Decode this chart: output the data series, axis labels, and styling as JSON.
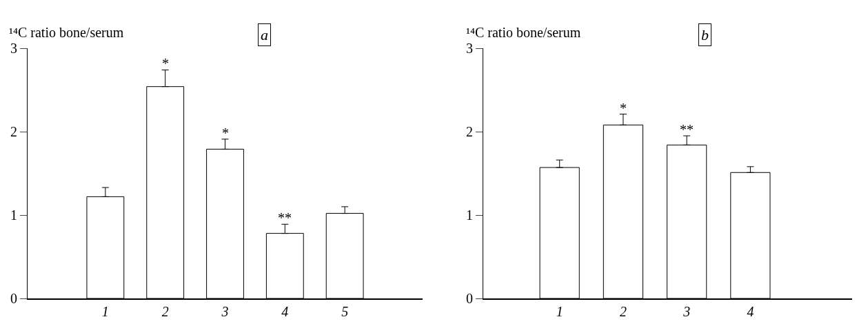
{
  "chart_data": [
    {
      "type": "bar",
      "title": "a",
      "ylabel": "¹⁴C ratio bone/serum",
      "categories": [
        "1",
        "2",
        "3",
        "4",
        "5"
      ],
      "values": [
        1.22,
        2.54,
        1.79,
        0.78,
        1.02
      ],
      "errors": [
        0.11,
        0.2,
        0.12,
        0.11,
        0.08
      ],
      "color": "#ffffff",
      "ylim": [
        0,
        3
      ],
      "yticks": [
        0,
        1,
        2,
        3
      ],
      "grid": false,
      "annotations": [
        {
          "text": "*",
          "x": "2",
          "y": 2.74
        },
        {
          "text": "*",
          "x": "3",
          "y": 1.91
        },
        {
          "text": "**",
          "x": "4",
          "y": 0.89
        }
      ]
    },
    {
      "type": "bar",
      "title": "b",
      "ylabel": "¹⁴C ratio bone/serum",
      "categories": [
        "1",
        "2",
        "3",
        "4"
      ],
      "values": [
        1.57,
        2.08,
        1.84,
        1.51
      ],
      "errors": [
        0.09,
        0.13,
        0.11,
        0.07
      ],
      "color": "#ffffff",
      "ylim": [
        0,
        3
      ],
      "yticks": [
        0,
        1,
        2,
        3
      ],
      "grid": false,
      "annotations": [
        {
          "text": "*",
          "x": "2",
          "y": 2.21
        },
        {
          "text": "**",
          "x": "3",
          "y": 1.95
        }
      ]
    }
  ]
}
